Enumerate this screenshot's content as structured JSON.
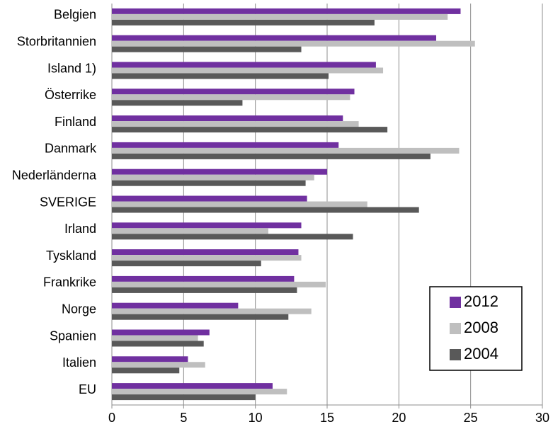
{
  "chart_data": {
    "type": "barh",
    "categories": [
      "Belgien",
      "Storbritannien",
      "Island 1)",
      "Österrike",
      "Finland",
      "Danmark",
      "Nederländerna",
      "SVERIGE",
      "Irland",
      "Tyskland",
      "Frankrike",
      "Norge",
      "Spanien",
      "Italien",
      "EU"
    ],
    "series": [
      {
        "name": "2012",
        "color": "#7030a0",
        "values": [
          24.3,
          22.6,
          18.4,
          16.9,
          16.1,
          15.8,
          15.0,
          13.6,
          13.2,
          13.0,
          12.7,
          8.8,
          6.8,
          5.3,
          11.2
        ]
      },
      {
        "name": "2008",
        "color": "#bfbfbf",
        "values": [
          23.4,
          25.3,
          18.9,
          16.6,
          17.2,
          24.2,
          14.1,
          17.8,
          10.9,
          13.2,
          14.9,
          13.9,
          6.0,
          6.5,
          12.2
        ]
      },
      {
        "name": "2004",
        "color": "#595959",
        "values": [
          18.3,
          13.2,
          15.1,
          9.1,
          19.2,
          22.2,
          13.5,
          21.4,
          16.8,
          10.4,
          12.9,
          12.3,
          6.4,
          4.7,
          10.0
        ]
      }
    ],
    "xlim": [
      0,
      30
    ],
    "xticks": [
      0,
      5,
      10,
      15,
      20,
      25,
      30
    ],
    "grid": true,
    "legend": "lower right"
  }
}
